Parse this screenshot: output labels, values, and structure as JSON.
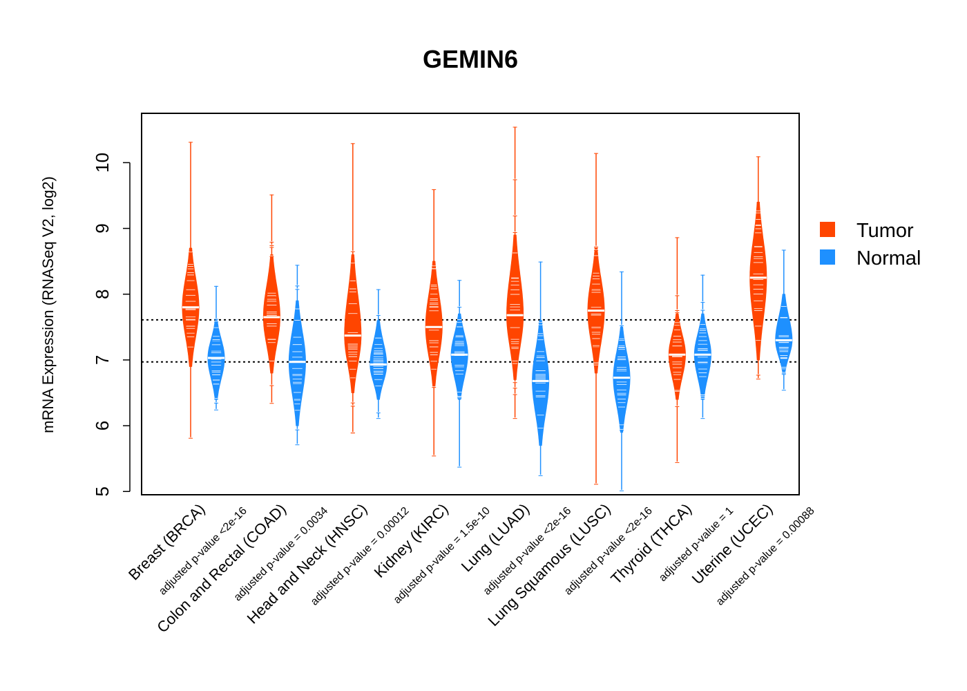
{
  "chart_data": {
    "type": "violin",
    "title": "GEMIN6",
    "xlabel": "",
    "ylabel": "mRNA Expression (RNASeq V2, log2)",
    "ylim": [
      4.95,
      10.75
    ],
    "yticks": [
      5,
      6,
      7,
      8,
      9,
      10
    ],
    "reference_lines": [
      7.61,
      6.97
    ],
    "legend": {
      "position": "right",
      "items": [
        {
          "name": "Tumor",
          "color": "#FF4500"
        },
        {
          "name": "Normal",
          "color": "#1E90FF"
        }
      ]
    },
    "categories": [
      {
        "label": "Breast (BRCA)",
        "pvalue": "adjusted p-value <2e-16"
      },
      {
        "label": "Colon and Rectal (COAD)",
        "pvalue": "adjusted p-value = 0.0034"
      },
      {
        "label": "Head and Neck (HNSC)",
        "pvalue": "adjusted p-value = 0.00012"
      },
      {
        "label": "Kidney (KIRC)",
        "pvalue": "adjusted p-value = 1.5e-10"
      },
      {
        "label": "Lung (LUAD)",
        "pvalue": "adjusted p-value <2e-16"
      },
      {
        "label": "Lung Squamous (LUSC)",
        "pvalue": "adjusted p-value <2e-16"
      },
      {
        "label": "Thyroid (THCA)",
        "pvalue": "adjusted p-value = 1"
      },
      {
        "label": "Uterine (UCEC)",
        "pvalue": "adjusted p-value = 0.00088"
      }
    ],
    "series": [
      {
        "name": "Tumor",
        "color": "#FF4500",
        "distributions": [
          {
            "min": 5.82,
            "max": 10.32,
            "median": 7.8,
            "q_low": 6.9,
            "q_high": 8.7
          },
          {
            "min": 6.35,
            "max": 9.52,
            "median": 7.65,
            "q_low": 6.8,
            "q_high": 8.6
          },
          {
            "min": 5.9,
            "max": 10.3,
            "median": 7.37,
            "q_low": 6.5,
            "q_high": 8.6
          },
          {
            "min": 5.55,
            "max": 9.6,
            "median": 7.5,
            "q_low": 6.6,
            "q_high": 8.5
          },
          {
            "min": 6.12,
            "max": 10.55,
            "median": 7.68,
            "q_low": 6.7,
            "q_high": 8.9
          },
          {
            "min": 5.12,
            "max": 10.15,
            "median": 7.75,
            "q_low": 6.8,
            "q_high": 8.7
          },
          {
            "min": 5.45,
            "max": 8.87,
            "median": 7.08,
            "q_low": 6.4,
            "q_high": 7.7
          },
          {
            "min": 6.72,
            "max": 10.1,
            "median": 8.25,
            "q_low": 7.0,
            "q_high": 9.4
          }
        ]
      },
      {
        "name": "Normal",
        "color": "#1E90FF",
        "distributions": [
          {
            "min": 6.25,
            "max": 8.13,
            "median": 7.03,
            "q_low": 6.4,
            "q_high": 7.6
          },
          {
            "min": 5.72,
            "max": 8.45,
            "median": 6.97,
            "q_low": 6.0,
            "q_high": 7.9
          },
          {
            "min": 6.12,
            "max": 8.08,
            "median": 6.93,
            "q_low": 6.4,
            "q_high": 7.6
          },
          {
            "min": 5.38,
            "max": 8.22,
            "median": 7.08,
            "q_low": 6.4,
            "q_high": 7.7
          },
          {
            "min": 5.25,
            "max": 8.5,
            "median": 6.68,
            "q_low": 5.7,
            "q_high": 7.6
          },
          {
            "min": 5.02,
            "max": 8.35,
            "median": 6.73,
            "q_low": 5.9,
            "q_high": 7.5
          },
          {
            "min": 6.12,
            "max": 8.3,
            "median": 7.08,
            "q_low": 6.4,
            "q_high": 7.7
          },
          {
            "min": 6.55,
            "max": 8.68,
            "median": 7.3,
            "q_low": 6.8,
            "q_high": 8.0
          }
        ]
      }
    ]
  }
}
